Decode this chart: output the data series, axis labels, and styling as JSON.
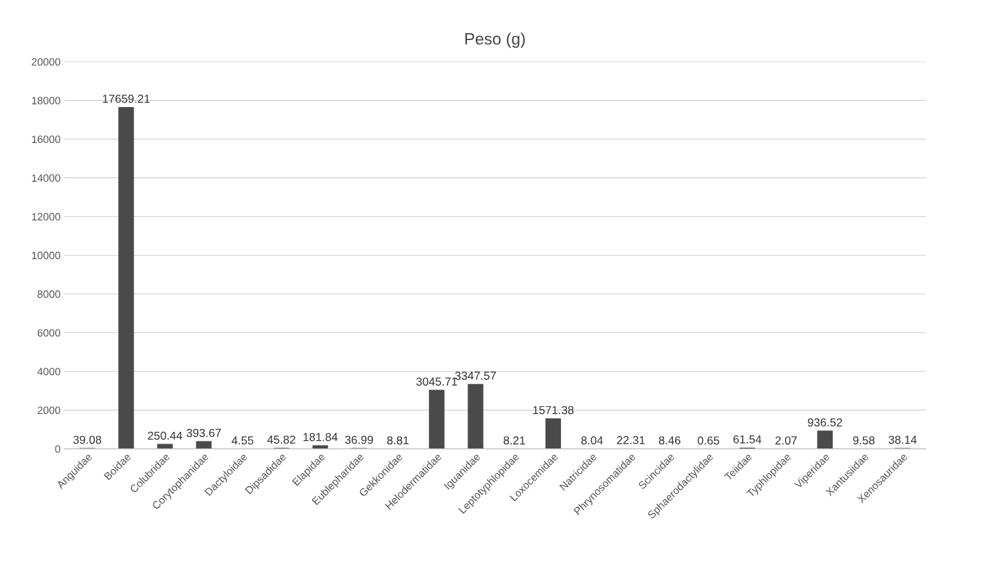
{
  "chart_data": {
    "type": "bar",
    "title": "Peso (g)",
    "categories": [
      "Anguidae",
      "Boidae",
      "Colubridae",
      "Corytophanidae",
      "Dactyloidae",
      "Dipsadidae",
      "Elapidae",
      "Eublepharidae",
      "Gekkonidae",
      "Helodermatidae",
      "Iguanidae",
      "Leptotyphlopidae",
      "Loxocemidae",
      "Natricidae",
      "Phrynosomatidae",
      "Scincidae",
      "Sphaerodactylidae",
      "Teiidae",
      "Typhlopidae",
      "Viperidae",
      "Xantusiidae",
      "Xenosauridae"
    ],
    "values": [
      39.08,
      17659.21,
      250.44,
      393.67,
      4.55,
      45.82,
      181.84,
      36.99,
      8.81,
      3045.71,
      3347.57,
      8.21,
      1571.38,
      8.04,
      22.31,
      8.46,
      0.65,
      61.54,
      2.07,
      936.52,
      9.58,
      38.14
    ],
    "color": "#4a4a4a",
    "ylim": [
      0,
      20000
    ],
    "yticks": [
      0,
      2000,
      4000,
      6000,
      8000,
      10000,
      12000,
      14000,
      16000,
      18000,
      20000
    ],
    "grid": "y",
    "data_labels": true
  }
}
